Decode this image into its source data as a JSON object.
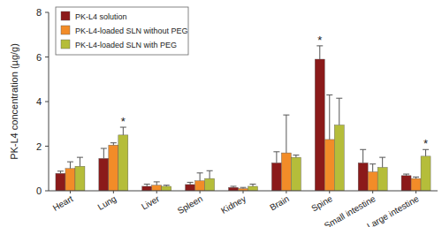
{
  "chart_data": {
    "type": "bar",
    "y_label": "PK-L4 concentration (µg/g)",
    "categories": [
      "Heart",
      "Lung",
      "Liver",
      "Spleen",
      "Kidney",
      "Brain",
      "Spine",
      "Small intestine",
      "Large intestine"
    ],
    "series": [
      {
        "name": "PK-L4 solution",
        "color": "#8b1a1a",
        "values": [
          0.78,
          1.45,
          0.2,
          0.28,
          0.15,
          1.25,
          5.9,
          1.25,
          0.68
        ],
        "errors": [
          0.1,
          0.45,
          0.1,
          0.1,
          0.05,
          0.5,
          0.6,
          0.6,
          0.07
        ]
      },
      {
        "name": "PK-L4-loaded SLN without PEG",
        "color": "#f28c28",
        "values": [
          1.0,
          2.05,
          0.25,
          0.45,
          0.1,
          1.7,
          2.3,
          0.85,
          0.55
        ],
        "errors": [
          0.3,
          0.1,
          0.15,
          0.35,
          0.05,
          1.7,
          2.0,
          0.35,
          0.07
        ]
      },
      {
        "name": "PK-L4-loaded SLN with PEG",
        "color": "#b5bd3a",
        "values": [
          1.1,
          2.5,
          0.2,
          0.55,
          0.2,
          1.5,
          2.95,
          1.05,
          1.55
        ],
        "errors": [
          0.4,
          0.35,
          0.05,
          0.35,
          0.1,
          0.1,
          1.2,
          0.45,
          0.3
        ]
      }
    ],
    "annotations": [
      {
        "text": "*",
        "category": "Lung",
        "series": "PK-L4-loaded SLN with PEG"
      },
      {
        "text": "*",
        "category": "Spine",
        "series": "PK-L4 solution"
      },
      {
        "text": "*",
        "category": "Large intestine",
        "series": "PK-L4-loaded SLN with PEG"
      }
    ],
    "ylim": [
      0,
      8
    ],
    "yticks": [
      0,
      2,
      4,
      6,
      8
    ],
    "grid": false,
    "legend": "upper left"
  }
}
